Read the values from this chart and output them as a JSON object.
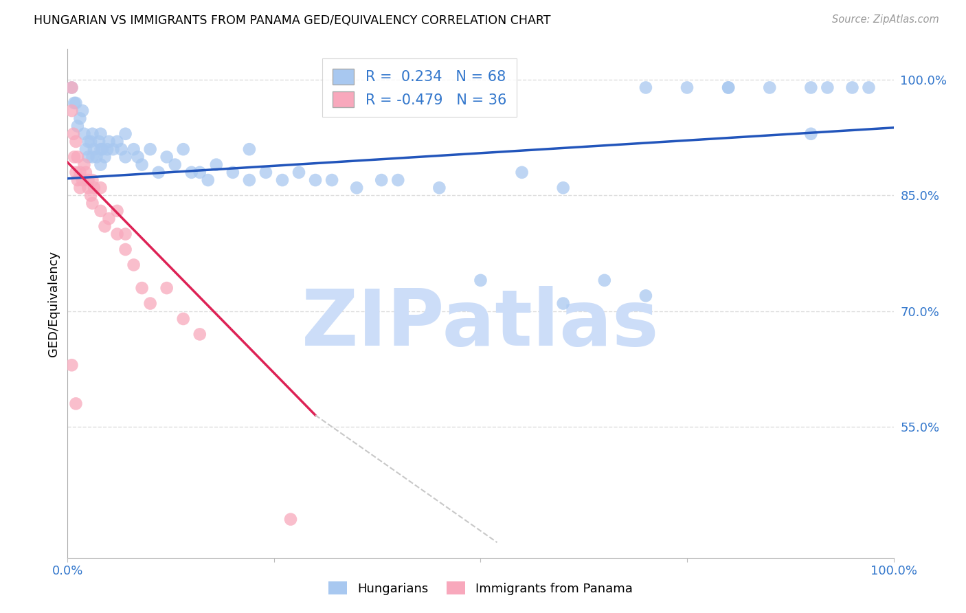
{
  "title": "HUNGARIAN VS IMMIGRANTS FROM PANAMA GED/EQUIVALENCY CORRELATION CHART",
  "source": "Source: ZipAtlas.com",
  "ylabel": "GED/Equivalency",
  "xlim": [
    0.0,
    1.0
  ],
  "ylim": [
    0.38,
    1.04
  ],
  "yticks": [
    0.55,
    0.7,
    0.85,
    1.0
  ],
  "ytick_labels": [
    "55.0%",
    "70.0%",
    "85.0%",
    "100.0%"
  ],
  "xticks": [
    0.0,
    0.25,
    0.5,
    0.75,
    1.0
  ],
  "xtick_labels": [
    "0.0%",
    "",
    "",
    "",
    "100.0%"
  ],
  "blue_R": "0.234",
  "blue_N": "68",
  "pink_R": "-0.479",
  "pink_N": "36",
  "blue_dot_color": "#a8c8f0",
  "pink_dot_color": "#f8a8bc",
  "blue_line_color": "#2255bb",
  "pink_line_color": "#dd2255",
  "dash_line_color": "#c8c8c8",
  "axis_label_color": "#3377cc",
  "grid_color": "#dddddd",
  "watermark_color": "#ccddf8",
  "blue_x": [
    0.005,
    0.008,
    0.01,
    0.012,
    0.015,
    0.018,
    0.02,
    0.022,
    0.025,
    0.025,
    0.028,
    0.03,
    0.03,
    0.032,
    0.035,
    0.038,
    0.04,
    0.04,
    0.04,
    0.042,
    0.045,
    0.048,
    0.05,
    0.055,
    0.06,
    0.065,
    0.07,
    0.07,
    0.08,
    0.085,
    0.09,
    0.1,
    0.11,
    0.12,
    0.13,
    0.14,
    0.15,
    0.16,
    0.17,
    0.18,
    0.2,
    0.22,
    0.22,
    0.24,
    0.26,
    0.28,
    0.3,
    0.32,
    0.35,
    0.38,
    0.4,
    0.45,
    0.5,
    0.55,
    0.6,
    0.65,
    0.7,
    0.75,
    0.8,
    0.85,
    0.9,
    0.92,
    0.95,
    0.97,
    0.6,
    0.7,
    0.8,
    0.9
  ],
  "blue_y": [
    0.99,
    0.97,
    0.97,
    0.94,
    0.95,
    0.96,
    0.93,
    0.91,
    0.9,
    0.92,
    0.92,
    0.9,
    0.93,
    0.91,
    0.9,
    0.92,
    0.91,
    0.89,
    0.93,
    0.91,
    0.9,
    0.91,
    0.92,
    0.91,
    0.92,
    0.91,
    0.9,
    0.93,
    0.91,
    0.9,
    0.89,
    0.91,
    0.88,
    0.9,
    0.89,
    0.91,
    0.88,
    0.88,
    0.87,
    0.89,
    0.88,
    0.91,
    0.87,
    0.88,
    0.87,
    0.88,
    0.87,
    0.87,
    0.86,
    0.87,
    0.87,
    0.86,
    0.74,
    0.88,
    0.86,
    0.74,
    0.99,
    0.99,
    0.99,
    0.99,
    0.99,
    0.99,
    0.99,
    0.99,
    0.71,
    0.72,
    0.99,
    0.93
  ],
  "pink_x": [
    0.005,
    0.005,
    0.007,
    0.008,
    0.01,
    0.01,
    0.012,
    0.012,
    0.015,
    0.015,
    0.018,
    0.02,
    0.022,
    0.025,
    0.025,
    0.028,
    0.03,
    0.03,
    0.032,
    0.04,
    0.04,
    0.045,
    0.05,
    0.06,
    0.06,
    0.07,
    0.07,
    0.08,
    0.09,
    0.1,
    0.12,
    0.14,
    0.16,
    0.27,
    0.005,
    0.01
  ],
  "pink_y": [
    0.99,
    0.96,
    0.93,
    0.9,
    0.92,
    0.88,
    0.9,
    0.87,
    0.88,
    0.86,
    0.87,
    0.89,
    0.88,
    0.87,
    0.86,
    0.85,
    0.87,
    0.84,
    0.86,
    0.86,
    0.83,
    0.81,
    0.82,
    0.83,
    0.8,
    0.8,
    0.78,
    0.76,
    0.73,
    0.71,
    0.73,
    0.69,
    0.67,
    0.43,
    0.63,
    0.58
  ],
  "blue_trend_x0": 0.0,
  "blue_trend_y0": 0.872,
  "blue_trend_x1": 1.0,
  "blue_trend_y1": 0.938,
  "pink_trend_solid_x0": 0.0,
  "pink_trend_solid_y0": 0.893,
  "pink_trend_solid_x1": 0.3,
  "pink_trend_solid_y1": 0.565,
  "pink_trend_dash_x0": 0.3,
  "pink_trend_dash_y0": 0.565,
  "pink_trend_dash_x1": 0.52,
  "pink_trend_dash_y1": 0.4
}
